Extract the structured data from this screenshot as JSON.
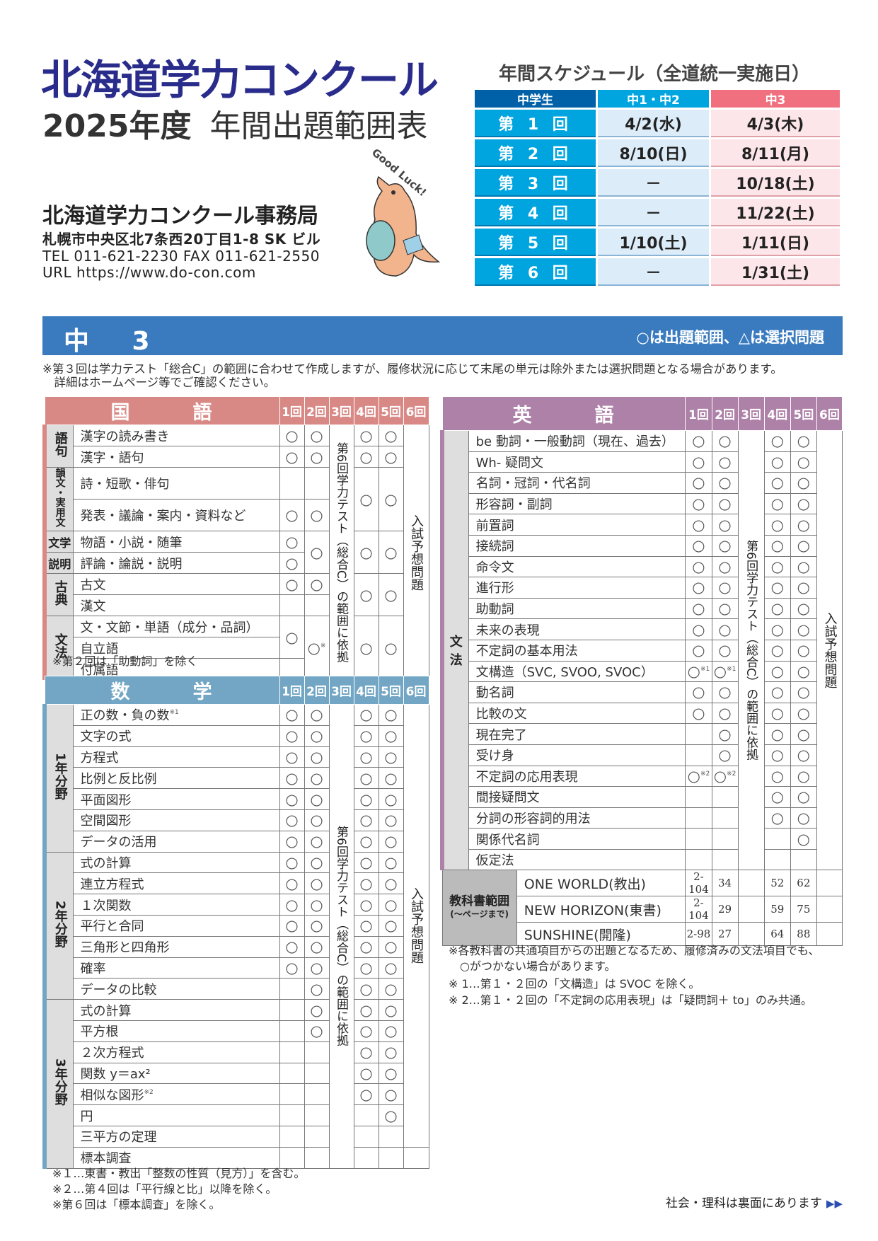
{
  "header": {
    "brand": "北海道学力コンクール",
    "year": "2025年度",
    "doc_title": "年間出題範囲表",
    "office": "北海道学力コンクール事務局",
    "address": "札幌市中央区北7条西20丁目1-8  SK ビル",
    "tel": "TEL  011-621-2230   FAX  011-621-2550",
    "url": "URL  https://www.do-con.com",
    "mascot_text": "Good Luck!",
    "brand_color": "#2a2c8c"
  },
  "schedule": {
    "title": "年間スケジュール（全道統一実施日）",
    "headers": [
      "中学生",
      "中1・中2",
      "中3"
    ],
    "rows": [
      [
        "第 1 回",
        "4/2(水)",
        "4/3(木)"
      ],
      [
        "第 2 回",
        "8/10(日)",
        "8/11(月)"
      ],
      [
        "第 3 回",
        "－",
        "10/18(土)"
      ],
      [
        "第 4 回",
        "－",
        "11/22(土)"
      ],
      [
        "第 5 回",
        "1/10(土)",
        "1/11(日)"
      ],
      [
        "第 6 回",
        "－",
        "1/31(土)"
      ]
    ]
  },
  "banner": {
    "grade": "中 3",
    "legend": "○は出題範囲、△は選択問題",
    "color": "#3a7bbf"
  },
  "top_note": "※第３回は学力テスト「総合C」の範囲に合わせて作成しますが、履修状況に応じて末尾の単元は除外または選択問題となる場合があります。\n　詳細はホームページ等でご確認ください。",
  "round_headers": [
    "1回",
    "2回",
    "3回",
    "4回",
    "5回",
    "6回"
  ],
  "kokugo": {
    "title": "国　　　語",
    "color": "#d98985",
    "col3": "第6回学力テスト（総合C）の範囲に依拠",
    "col6": "入試予想問題",
    "groups": [
      {
        "label": "語句",
        "items": [
          {
            "label": "漢字の読み書き",
            "marks": [
              "○",
              "○",
              "○",
              "○"
            ]
          },
          {
            "label": "漢字・語句",
            "marks": [
              "○",
              "○",
              "○",
              "○"
            ]
          }
        ]
      },
      {
        "label": "韻文・実用文",
        "items": [
          {
            "label": "詩・短歌・俳句",
            "marks": [
              "",
              "",
              "○",
              "○"
            ]
          },
          {
            "label": "発表・議論・案内・資料など",
            "marks": [
              "○",
              "○",
              "",
              ""
            ]
          }
        ]
      },
      {
        "label": "文学",
        "items": [
          {
            "label": "物語・小説・随筆",
            "marks": [
              "○",
              "○",
              "○",
              "○"
            ]
          }
        ]
      },
      {
        "label": "説明",
        "items": [
          {
            "label": "評論・論説・説明",
            "marks": [
              "○",
              "",
              "",
              ""
            ]
          }
        ]
      },
      {
        "label": "古典",
        "items": [
          {
            "label": "古文",
            "marks": [
              "○",
              "○",
              "○",
              "○"
            ]
          },
          {
            "label": "漢文",
            "marks": [
              "",
              "",
              "",
              ""
            ]
          }
        ]
      },
      {
        "label": "文法",
        "items": [
          {
            "label": "文・文節・単語（成分・品詞）",
            "marks": [
              "○",
              "○※",
              "○",
              "○"
            ]
          },
          {
            "label": "自立語",
            "marks": [
              "",
              "",
              "",
              ""
            ]
          },
          {
            "label": "付属語",
            "marks": [
              "",
              "",
              "",
              ""
            ]
          }
        ]
      }
    ],
    "note": "※第２回は「助動詞」を除く"
  },
  "sugaku": {
    "title": "数　　　学",
    "color": "#72a6c4",
    "col3": "第6回学力テスト（総合C）の範囲に依拠",
    "col6": "入試予想問題",
    "groups": [
      {
        "label": "1年分野",
        "items": [
          {
            "label": "正の数・負の数※1",
            "marks": [
              "○",
              "○",
              "○",
              "○"
            ]
          },
          {
            "label": "文字の式",
            "marks": [
              "○",
              "○",
              "○",
              "○"
            ]
          },
          {
            "label": "方程式",
            "marks": [
              "○",
              "○",
              "○",
              "○"
            ]
          },
          {
            "label": "比例と反比例",
            "marks": [
              "○",
              "○",
              "○",
              "○"
            ]
          },
          {
            "label": "平面図形",
            "marks": [
              "○",
              "○",
              "○",
              "○"
            ]
          },
          {
            "label": "空間図形",
            "marks": [
              "○",
              "○",
              "○",
              "○"
            ]
          },
          {
            "label": "データの活用",
            "marks": [
              "○",
              "○",
              "○",
              "○"
            ]
          }
        ]
      },
      {
        "label": "2年分野",
        "items": [
          {
            "label": "式の計算",
            "marks": [
              "○",
              "○",
              "○",
              "○"
            ]
          },
          {
            "label": "連立方程式",
            "marks": [
              "○",
              "○",
              "○",
              "○"
            ]
          },
          {
            "label": "１次関数",
            "marks": [
              "○",
              "○",
              "○",
              "○"
            ]
          },
          {
            "label": "平行と合同",
            "marks": [
              "○",
              "○",
              "○",
              "○"
            ]
          },
          {
            "label": "三角形と四角形",
            "marks": [
              "○",
              "○",
              "○",
              "○"
            ]
          },
          {
            "label": "確率",
            "marks": [
              "○",
              "○",
              "○",
              "○"
            ]
          },
          {
            "label": "データの比較",
            "marks": [
              "",
              "○",
              "○",
              "○"
            ]
          }
        ]
      },
      {
        "label": "3年分野",
        "items": [
          {
            "label": "式の計算",
            "marks": [
              "",
              "○",
              "○",
              "○"
            ]
          },
          {
            "label": "平方根",
            "marks": [
              "",
              "○",
              "○",
              "○"
            ]
          },
          {
            "label": "２次方程式",
            "marks": [
              "",
              "",
              "○",
              "○"
            ]
          },
          {
            "label": "関数 y＝ax²",
            "marks": [
              "",
              "",
              "○",
              "○"
            ]
          },
          {
            "label": "相似な図形※2",
            "marks": [
              "",
              "",
              "○",
              "○"
            ]
          },
          {
            "label": "円",
            "marks": [
              "",
              "",
              "",
              "○"
            ]
          },
          {
            "label": "三平方の定理",
            "marks": [
              "",
              "",
              "",
              ""
            ]
          },
          {
            "label": "標本調査",
            "marks": [
              "",
              "",
              "",
              ""
            ]
          }
        ]
      }
    ],
    "notes": [
      "※１…東書・教出「整数の性質（見方）」を含む。",
      "※２…第４回は「平行線と比」以降を除く。",
      "※第６回は「標本調査」を除く。"
    ]
  },
  "eigo": {
    "title": "英　　　語",
    "color": "#ad81a8",
    "col3": "第6回学力テスト（総合C）の範囲に依拠",
    "col6": "入試予想問題",
    "group": "文法",
    "items": [
      {
        "label": "be 動詞・一般動詞（現在、過去）",
        "marks": [
          "○",
          "○",
          "○",
          "○"
        ]
      },
      {
        "label": "Wh- 疑問文",
        "marks": [
          "○",
          "○",
          "○",
          "○"
        ]
      },
      {
        "label": "名詞・冠詞・代名詞",
        "marks": [
          "○",
          "○",
          "○",
          "○"
        ]
      },
      {
        "label": "形容詞・副詞",
        "marks": [
          "○",
          "○",
          "○",
          "○"
        ]
      },
      {
        "label": "前置詞",
        "marks": [
          "○",
          "○",
          "○",
          "○"
        ]
      },
      {
        "label": "接続詞",
        "marks": [
          "○",
          "○",
          "○",
          "○"
        ]
      },
      {
        "label": "命令文",
        "marks": [
          "○",
          "○",
          "○",
          "○"
        ]
      },
      {
        "label": "進行形",
        "marks": [
          "○",
          "○",
          "○",
          "○"
        ]
      },
      {
        "label": "助動詞",
        "marks": [
          "○",
          "○",
          "○",
          "○"
        ]
      },
      {
        "label": "未来の表現",
        "marks": [
          "○",
          "○",
          "○",
          "○"
        ]
      },
      {
        "label": "不定詞の基本用法",
        "marks": [
          "○",
          "○",
          "○",
          "○"
        ]
      },
      {
        "label": "文構造（SVC, SVOO, SVOC）",
        "marks": [
          "○※1",
          "○※1",
          "○",
          "○"
        ]
      },
      {
        "label": "動名詞",
        "marks": [
          "○",
          "○",
          "○",
          "○"
        ]
      },
      {
        "label": "比較の文",
        "marks": [
          "○",
          "○",
          "○",
          "○"
        ]
      },
      {
        "label": "現在完了",
        "marks": [
          "",
          "○",
          "○",
          "○"
        ]
      },
      {
        "label": "受け身",
        "marks": [
          "",
          "○",
          "○",
          "○"
        ]
      },
      {
        "label": "不定詞の応用表現",
        "marks": [
          "○※2",
          "○※2",
          "○",
          "○"
        ]
      },
      {
        "label": "間接疑問文",
        "marks": [
          "",
          "",
          "○",
          "○"
        ]
      },
      {
        "label": "分詞の形容詞的用法",
        "marks": [
          "",
          "",
          "○",
          "○"
        ]
      },
      {
        "label": "関係代名詞",
        "marks": [
          "",
          "",
          "",
          "○"
        ]
      },
      {
        "label": "仮定法",
        "marks": [
          "",
          "",
          "",
          ""
        ]
      }
    ],
    "textbook_label": "教科書範囲",
    "textbook_sub": "(～ページまで)",
    "textbooks": [
      {
        "name": "ONE WORLD(教出)",
        "pages": [
          "2-104",
          "34",
          "52",
          "62"
        ]
      },
      {
        "name": "NEW HORIZON(東書)",
        "pages": [
          "2-104",
          "29",
          "59",
          "75"
        ]
      },
      {
        "name": "SUNSHINE(開隆)",
        "pages": [
          "2-98",
          "27",
          "64",
          "88"
        ]
      }
    ],
    "notes": [
      "※各教科書の共通項目からの出題となるため、履修済みの文法項目でも、",
      "　○がつかない場合があります。",
      "※ 1…第１・２回の「文構造」は SVOC を除く。",
      "※ 2…第１・２回の「不定詞の応用表現」は「疑問詞＋ to」のみ共通。"
    ]
  },
  "footer": {
    "back_note": "社会・理科は裏面にあります",
    "arrow_icon": "double-triangle-right-icon"
  }
}
